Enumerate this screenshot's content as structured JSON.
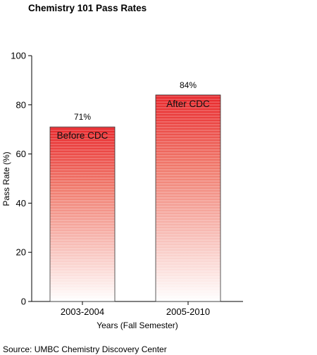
{
  "chart_data": {
    "type": "bar",
    "title": "Chemistry 101 Pass Rates",
    "categories": [
      "2003-2004",
      "2005-2010"
    ],
    "values": [
      71,
      84
    ],
    "value_labels": [
      "71%",
      "84%"
    ],
    "bar_labels": [
      "Before CDC",
      "After CDC"
    ],
    "xlabel": "Years (Fall Semester)",
    "ylabel": "Pass Rate (%)",
    "ylim": [
      0,
      100
    ],
    "yticks": [
      0,
      20,
      40,
      60,
      80,
      100
    ],
    "grid": false,
    "legend": "none",
    "bar_color_top": "#e8272b",
    "bar_color_bottom": "#ffffff"
  },
  "source": "Source: UMBC Chemistry Discovery Center"
}
